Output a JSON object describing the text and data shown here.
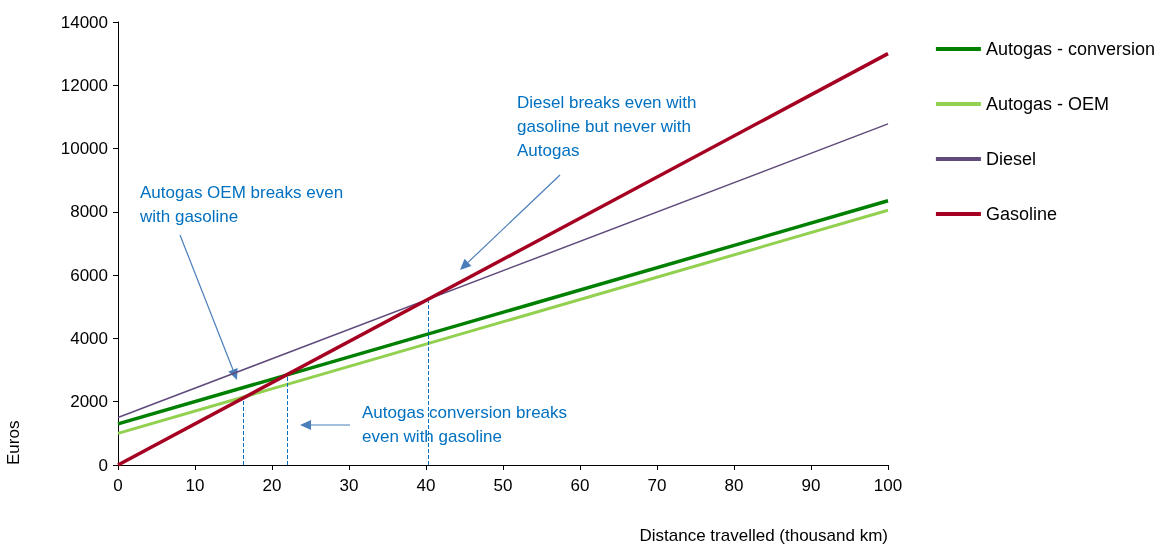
{
  "chart_data": {
    "type": "line",
    "xlabel": "Distance travelled (thousand km)",
    "ylabel": "Euros",
    "x": [
      0,
      100
    ],
    "series": [
      {
        "name": "Autogas - conversion",
        "color": "#008000",
        "values": [
          1300,
          8350
        ]
      },
      {
        "name": "Autogas - OEM",
        "color": "#92d050",
        "values": [
          1000,
          8050
        ]
      },
      {
        "name": "Diesel",
        "color": "#604a7b",
        "values": [
          1500,
          10780
        ]
      },
      {
        "name": "Gasoline",
        "color": "#a50021",
        "values": [
          0,
          13000
        ]
      }
    ],
    "xlim": [
      0,
      100
    ],
    "xticks": [
      0,
      10,
      20,
      30,
      40,
      50,
      60,
      70,
      80,
      90,
      100
    ],
    "ylim": [
      0,
      14000
    ],
    "yticks": [
      0,
      2000,
      4000,
      6000,
      8000,
      10000,
      12000,
      14000
    ],
    "grid": false,
    "legend": "right",
    "marker": "none",
    "line_style": "solid",
    "ref_lines": [
      {
        "axis": "x",
        "value": 16.3,
        "color": "#0070c0",
        "line_style": "dashed"
      },
      {
        "axis": "x",
        "value": 22,
        "color": "#0070c0",
        "line_style": "dashed"
      },
      {
        "axis": "x",
        "value": 40.3,
        "color": "#0070c0",
        "line_style": "dashed"
      }
    ],
    "annotations": [
      "Diesel breaks even with gasoline but never with Autogas",
      "Autogas OEM breaks even with gasoline",
      "Autogas conversion breaks even with gasoline"
    ]
  }
}
